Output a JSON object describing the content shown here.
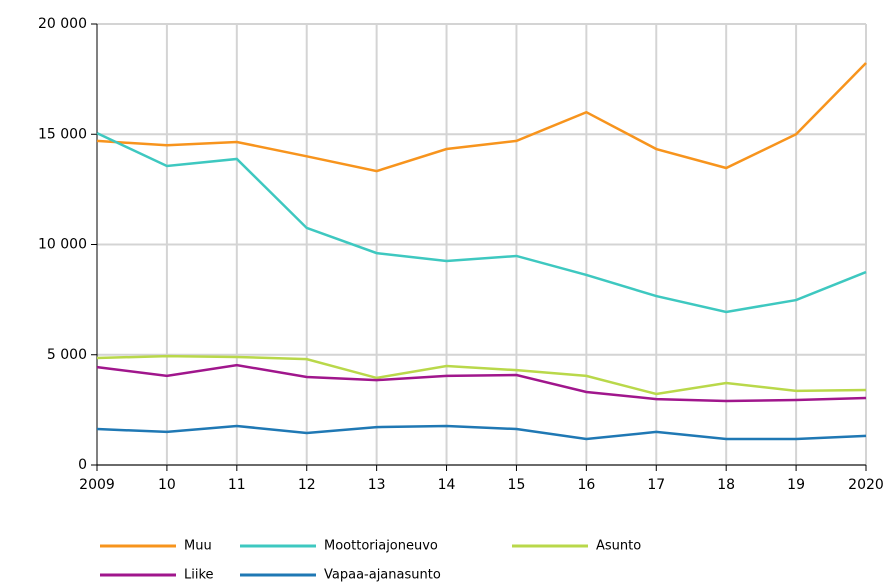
{
  "chart_data": {
    "type": "line",
    "categories": [
      "2009",
      "10",
      "11",
      "12",
      "13",
      "14",
      "15",
      "16",
      "17",
      "18",
      "19",
      "2020"
    ],
    "series": [
      {
        "name": "Muu",
        "color": "#f7941d",
        "values": [
          14700,
          14500,
          14650,
          14000,
          13330,
          14330,
          14700,
          16000,
          14330,
          13470,
          15000,
          18230
        ]
      },
      {
        "name": "Moottoriajoneuvo",
        "color": "#3ec8c0",
        "values": [
          15050,
          13560,
          13880,
          10750,
          9610,
          9250,
          9480,
          8620,
          7660,
          6940,
          7480,
          8750
        ]
      },
      {
        "name": "Asunto",
        "color": "#b9d84a",
        "values": [
          4850,
          4940,
          4900,
          4800,
          3950,
          4490,
          4300,
          4040,
          3220,
          3720,
          3360,
          3400
        ]
      },
      {
        "name": "Liike",
        "color": "#a0168c",
        "values": [
          4440,
          4040,
          4530,
          3990,
          3850,
          4040,
          4080,
          3310,
          2990,
          2900,
          2950,
          3040
        ]
      },
      {
        "name": "Vapaa-ajanasunto",
        "color": "#1f78b4",
        "values": [
          1630,
          1500,
          1770,
          1450,
          1720,
          1770,
          1630,
          1180,
          1500,
          1180,
          1180,
          1320
        ]
      }
    ],
    "ylim": [
      0,
      20000
    ],
    "yticks": [
      0,
      {
        "value": 5000,
        "label": "5 000"
      },
      {
        "value": 10000,
        "label": "10 000"
      },
      {
        "value": 15000,
        "label": "15 000"
      },
      {
        "value": 20000,
        "label": "20 000"
      }
    ],
    "grid": true
  }
}
